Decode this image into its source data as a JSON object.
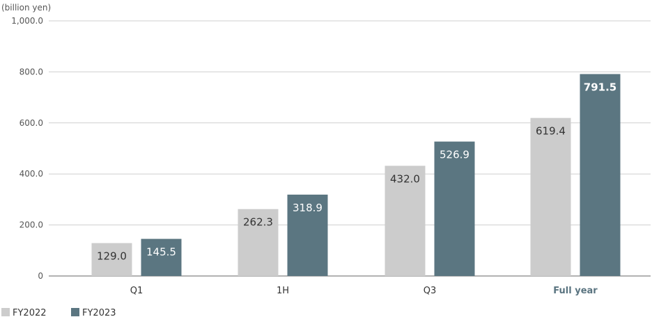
{
  "chart_data": {
    "type": "bar",
    "unit_label": "(billion yen)",
    "categories": [
      "Q1",
      "1H",
      "Q3",
      "Full year"
    ],
    "emphasized_category": "Full year",
    "series": [
      {
        "name": "FY2022",
        "values": [
          129.0,
          262.3,
          432.0,
          619.4
        ],
        "labels": [
          "129.0",
          "262.3",
          "432.0",
          "619.4"
        ],
        "color": "#cccccc",
        "label_color": "#333333"
      },
      {
        "name": "FY2023",
        "values": [
          145.5,
          318.9,
          526.9,
          791.5
        ],
        "labels": [
          "145.5",
          "318.9",
          "526.9",
          "791.5"
        ],
        "color": "#5b7681",
        "label_color": "#ffffff"
      }
    ],
    "emphasized_value_label": "791.5",
    "yticks": [
      0,
      200,
      400,
      600,
      800,
      1000
    ],
    "ytick_labels": [
      "0",
      "200.0",
      "400.0",
      "600.0",
      "800.0",
      "1,000.0"
    ],
    "ylim": [
      0,
      1000
    ],
    "grid": true,
    "legend_position": "bottom-left",
    "axis_color": "#666666",
    "grid_color": "#cfcfcf"
  }
}
